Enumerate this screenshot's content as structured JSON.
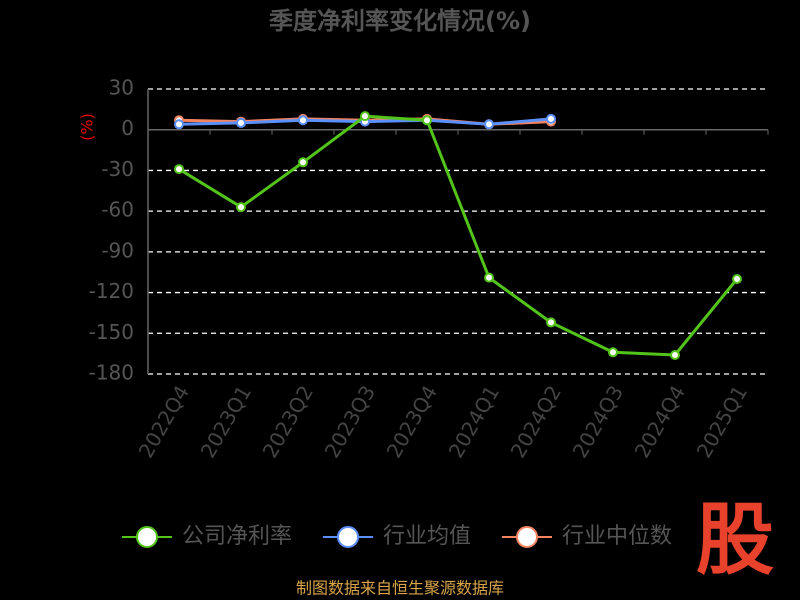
{
  "chart_data": {
    "type": "line",
    "title": "季度净利率变化情况(%)",
    "y_label": "(%)",
    "categories": [
      "2022Q4",
      "2023Q1",
      "2023Q2",
      "2023Q3",
      "2023Q4",
      "2024Q1",
      "2024Q2",
      "2024Q3",
      "2024Q4",
      "2025Q1"
    ],
    "series": [
      {
        "name": "公司净利率",
        "color": "#52c41a",
        "values": [
          -29,
          -57,
          -24,
          10,
          7,
          -109,
          -142,
          -164,
          -166,
          -110
        ]
      },
      {
        "name": "行业均值",
        "color": "#5b8ff9",
        "values": [
          4,
          5,
          7,
          6,
          7,
          4,
          8,
          null,
          null,
          null
        ]
      },
      {
        "name": "行业中位数",
        "color": "#f4845f",
        "values": [
          7,
          6,
          8,
          7,
          8,
          4,
          6,
          null,
          null,
          null
        ]
      }
    ],
    "ylim": [
      -180,
      30
    ],
    "yticks": [
      30,
      0,
      -30,
      -60,
      -90,
      -120,
      -150,
      -180
    ],
    "grid": true
  },
  "logo": "股",
  "source": "制图数据来自恒生聚源数据库"
}
